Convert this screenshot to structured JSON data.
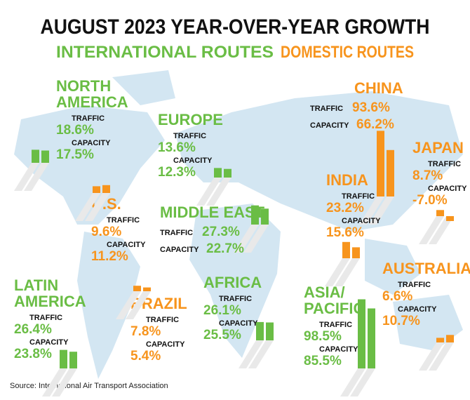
{
  "chart_data": {
    "type": "infographic-bars",
    "title": "AUGUST 2023 YEAR-OVER-YEAR GROWTH",
    "legend": [
      {
        "label": "INTERNATIONAL ROUTES",
        "color": "#6abd45"
      },
      {
        "label": "DOMESTIC ROUTES",
        "color": "#f7941d"
      }
    ],
    "metrics": [
      "TRAFFIC",
      "CAPACITY"
    ],
    "regions": [
      {
        "name": [
          "NORTH",
          "AMERICA"
        ],
        "color": "#6abd45",
        "values": [
          18.6,
          17.5
        ],
        "value_labels": [
          "18.6%",
          "17.5%"
        ]
      },
      {
        "name": [
          "EUROPE"
        ],
        "color": "#6abd45",
        "values": [
          13.6,
          12.3
        ],
        "value_labels": [
          "13.6%",
          "12.3%"
        ]
      },
      {
        "name": [
          "CHINA"
        ],
        "color": "#f7941d",
        "values": [
          93.6,
          66.2
        ],
        "value_labels": [
          "93.6%",
          "66.2%"
        ]
      },
      {
        "name": [
          "JAPAN"
        ],
        "color": "#f7941d",
        "values": [
          8.7,
          -7.0
        ],
        "value_labels": [
          "8.7%",
          "-7.0%"
        ]
      },
      {
        "name": [
          "INDIA"
        ],
        "color": "#f7941d",
        "values": [
          23.2,
          15.6
        ],
        "value_labels": [
          "23.2%",
          "15.6%"
        ]
      },
      {
        "name": [
          "U.S."
        ],
        "color": "#f7941d",
        "values": [
          9.6,
          11.2
        ],
        "value_labels": [
          "9.6%",
          "11.2%"
        ]
      },
      {
        "name": [
          "MIDDLE EAST"
        ],
        "color": "#6abd45",
        "values": [
          27.3,
          22.7
        ],
        "value_labels": [
          "27.3%",
          "22.7%"
        ]
      },
      {
        "name": [
          "LATIN",
          "AMERICA"
        ],
        "color": "#6abd45",
        "values": [
          26.4,
          23.8
        ],
        "value_labels": [
          "26.4%",
          "23.8%"
        ]
      },
      {
        "name": [
          "BRAZIL"
        ],
        "color": "#f7941d",
        "values": [
          7.8,
          5.4
        ],
        "value_labels": [
          "7.8%",
          "5.4%"
        ]
      },
      {
        "name": [
          "AFRICA"
        ],
        "color": "#6abd45",
        "values": [
          26.1,
          25.5
        ],
        "value_labels": [
          "26.1%",
          "25.5%"
        ]
      },
      {
        "name": [
          "ASIA/",
          "PACIFIC"
        ],
        "color": "#6abd45",
        "values": [
          98.5,
          85.5
        ],
        "value_labels": [
          "98.5%",
          "85.5%"
        ]
      },
      {
        "name": [
          "AUSTRALIA"
        ],
        "color": "#f7941d",
        "values": [
          6.6,
          10.7
        ],
        "value_labels": [
          "6.6%",
          "10.7%"
        ]
      }
    ],
    "source": "Source: International Air Transport Association"
  }
}
